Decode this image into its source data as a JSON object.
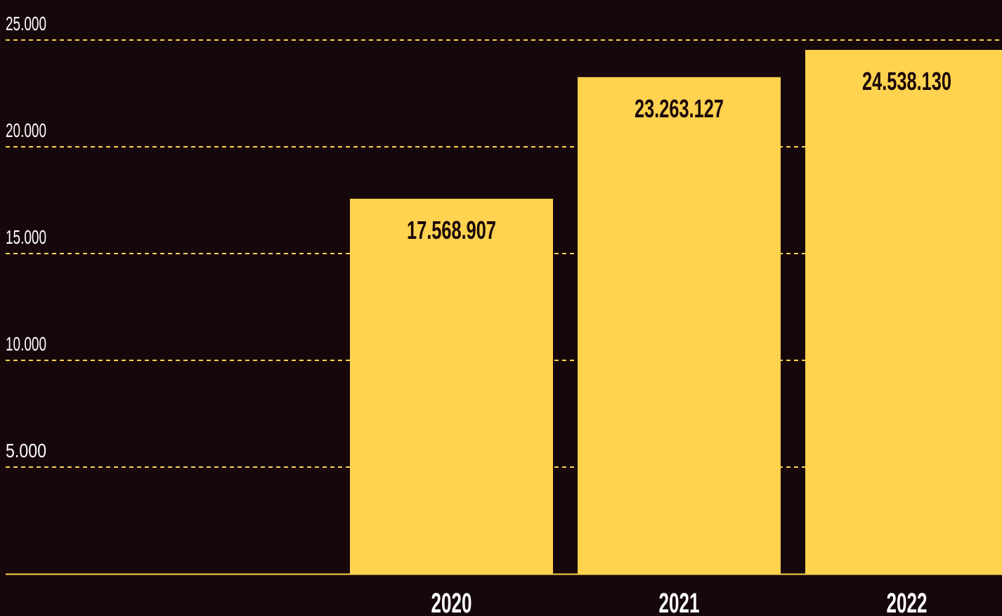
{
  "chart_data": {
    "type": "bar",
    "title": "",
    "xlabel": "",
    "ylabel": "",
    "ylim": [
      0,
      25000
    ],
    "y_ticks": [
      5000,
      10000,
      15000,
      20000,
      25000
    ],
    "y_tick_labels": [
      "5.000",
      "10.000",
      "15.000",
      "20.000",
      "25.000"
    ],
    "grid": true,
    "categories": [
      "2020",
      "2021",
      "2022"
    ],
    "values": [
      17568.907,
      23263.127,
      24538.13
    ],
    "data_labels": [
      "17.568.907",
      "23.263.127",
      "24.538.130"
    ]
  },
  "colors": {
    "background": "#16080a",
    "bar": "#ffd24f",
    "grid": "#ffd24f",
    "axis": "#ffd24f",
    "tick_text": "#ffffff",
    "bar_label_text": "#1a0709",
    "category_text": "#ffffff"
  }
}
